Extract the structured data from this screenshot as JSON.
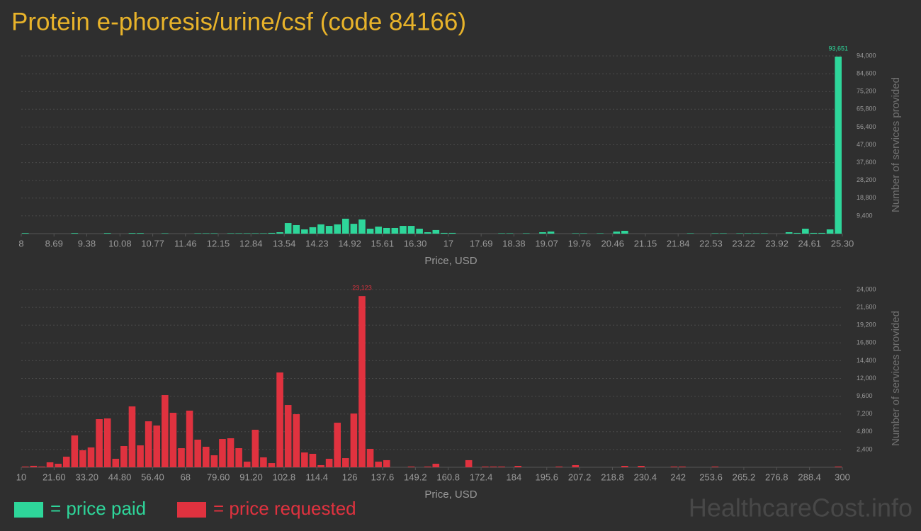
{
  "title": "Protein e-phoresis/urine/csf (code 84166)",
  "watermark": "HealthcareCost.info",
  "chart_data": [
    {
      "type": "histogram",
      "xlabel": "Price, USD",
      "ylabel": "Number of services provided",
      "grid": true,
      "xlim": [
        8,
        25.3
      ],
      "ylim": [
        0,
        94000
      ],
      "xticks": [
        8,
        8.69,
        9.38,
        10.08,
        10.77,
        11.46,
        12.15,
        12.84,
        13.54,
        14.23,
        14.92,
        15.61,
        {
          "value": 16.3,
          "label": "16.30"
        },
        17,
        17.69,
        18.38,
        19.07,
        19.76,
        20.46,
        21.15,
        21.84,
        22.53,
        23.22,
        23.92,
        24.61,
        {
          "value": 25.3,
          "label": "25.30"
        }
      ],
      "yticks": [
        {
          "value": 9400,
          "label": "9,400"
        },
        {
          "value": 18800,
          "label": "18,800"
        },
        {
          "value": 28200,
          "label": "28,200"
        },
        {
          "value": 37600,
          "label": "37,600"
        },
        {
          "value": 47000,
          "label": "47,000"
        },
        {
          "value": 56400,
          "label": "56,400"
        },
        {
          "value": 65800,
          "label": "65,800"
        },
        {
          "value": 75200,
          "label": "75,200"
        },
        {
          "value": 84600,
          "label": "84,600"
        },
        {
          "value": 94000,
          "label": "94,000"
        }
      ],
      "bins": [
        8,
        8.173,
        8.346,
        8.519,
        8.692,
        8.865,
        9.038,
        9.211,
        9.384,
        9.557,
        9.73,
        9.903,
        10.076,
        10.249,
        10.422,
        10.595,
        10.768,
        10.941,
        11.114,
        11.287,
        11.46,
        11.633,
        11.806,
        11.979,
        12.152,
        12.325,
        12.498,
        12.671,
        12.844,
        13.017,
        13.19,
        13.363,
        13.536,
        13.709,
        13.882,
        14.055,
        14.228,
        14.401,
        14.574,
        14.747,
        14.92,
        15.093,
        15.266,
        15.439,
        15.612,
        15.785,
        15.958,
        16.131,
        16.304,
        16.477,
        16.65,
        16.823,
        16.996,
        17.169,
        17.342,
        17.515,
        17.688,
        17.861,
        18.034,
        18.207,
        18.38,
        18.553,
        18.726,
        18.899,
        19.072,
        19.245,
        19.418,
        19.591,
        19.764,
        19.937,
        20.11,
        20.283,
        20.456,
        20.629,
        20.802,
        20.975,
        21.148,
        21.321,
        21.494,
        21.667,
        21.84,
        22.013,
        22.186,
        22.359,
        22.532,
        22.705,
        22.878,
        23.051,
        23.224,
        23.397,
        23.57,
        23.743,
        23.916,
        24.089,
        24.262,
        24.435,
        24.608,
        24.781,
        24.954,
        25.127,
        25.3
      ],
      "series": [
        {
          "name": "= price paid",
          "color": "#2ed69a",
          "values": [
            300,
            0,
            0,
            0,
            0,
            0,
            300,
            0,
            0,
            0,
            300,
            0,
            0,
            300,
            300,
            0,
            0,
            200,
            0,
            0,
            0,
            200,
            200,
            200,
            0,
            200,
            200,
            200,
            200,
            200,
            400,
            750,
            5600,
            4500,
            2250,
            3400,
            4900,
            4100,
            4900,
            7900,
            5200,
            7500,
            2600,
            3700,
            3000,
            3000,
            4100,
            4100,
            2600,
            750,
            1900,
            400,
            400,
            0,
            0,
            0,
            0,
            0,
            200,
            200,
            0,
            200,
            0,
            750,
            1100,
            0,
            0,
            200,
            200,
            0,
            200,
            0,
            1100,
            1500,
            0,
            0,
            0,
            0,
            0,
            0,
            0,
            200,
            0,
            0,
            200,
            200,
            0,
            200,
            200,
            200,
            200,
            0,
            0,
            750,
            400,
            2600,
            400,
            400,
            2250,
            93651
          ],
          "value_labels": [
            null,
            null,
            null,
            null,
            null,
            null,
            null,
            null,
            null,
            null,
            null,
            null,
            null,
            null,
            null,
            null,
            null,
            null,
            null,
            null,
            null,
            null,
            null,
            null,
            null,
            null,
            null,
            null,
            null,
            null,
            null,
            null,
            null,
            null,
            null,
            null,
            null,
            null,
            null,
            null,
            null,
            null,
            null,
            null,
            null,
            null,
            null,
            null,
            null,
            null,
            null,
            null,
            null,
            null,
            null,
            null,
            null,
            null,
            null,
            null,
            null,
            null,
            null,
            null,
            null,
            null,
            null,
            null,
            null,
            null,
            null,
            null,
            null,
            null,
            null,
            null,
            null,
            null,
            null,
            null,
            null,
            null,
            null,
            null,
            null,
            null,
            null,
            null,
            null,
            null,
            null,
            null,
            null,
            null,
            null,
            null,
            null,
            null,
            null,
            "93,651"
          ]
        }
      ]
    },
    {
      "type": "histogram",
      "xlabel": "Price, USD",
      "ylabel": "Number of services provided",
      "grid": true,
      "xlim": [
        10,
        300
      ],
      "ylim": [
        0,
        24000
      ],
      "xticks": [
        10,
        {
          "value": 21.6,
          "label": "21.60"
        },
        {
          "value": 33.2,
          "label": "33.20"
        },
        {
          "value": 44.8,
          "label": "44.80"
        },
        {
          "value": 56.4,
          "label": "56.40"
        },
        68,
        {
          "value": 79.6,
          "label": "79.60"
        },
        {
          "value": 91.2,
          "label": "91.20"
        },
        102.8,
        114.4,
        126,
        137.6,
        149.2,
        160.8,
        172.4,
        184,
        195.6,
        207.2,
        218.8,
        230.4,
        242,
        253.6,
        265.2,
        276.8,
        288.4,
        300
      ],
      "yticks": [
        {
          "value": 2400,
          "label": "2,400"
        },
        {
          "value": 4800,
          "label": "4,800"
        },
        {
          "value": 7200,
          "label": "7,200"
        },
        {
          "value": 9600,
          "label": "9,600"
        },
        {
          "value": 12000,
          "label": "12,000"
        },
        {
          "value": 14400,
          "label": "14,400"
        },
        {
          "value": 16800,
          "label": "16,800"
        },
        {
          "value": 19200,
          "label": "19,200"
        },
        {
          "value": 21600,
          "label": "21,600"
        },
        {
          "value": 24000,
          "label": "24,000"
        }
      ],
      "bins": [
        10,
        12.9,
        15.8,
        18.7,
        21.6,
        24.5,
        27.4,
        30.3,
        33.2,
        36.1,
        39,
        41.9,
        44.8,
        47.7,
        50.6,
        53.5,
        56.4,
        59.3,
        62.2,
        65.1,
        68,
        70.9,
        73.8,
        76.7,
        79.6,
        82.5,
        85.4,
        88.3,
        91.2,
        94.1,
        97,
        99.9,
        102.8,
        105.7,
        108.6,
        111.5,
        114.4,
        117.3,
        120.2,
        123.1,
        126,
        128.9,
        131.8,
        134.7,
        137.6,
        140.5,
        143.4,
        146.3,
        149.2,
        152.1,
        155,
        157.9,
        160.8,
        163.7,
        166.6,
        169.5,
        172.4,
        175.3,
        178.2,
        181.1,
        184,
        186.9,
        189.8,
        192.7,
        195.6,
        198.5,
        201.4,
        204.3,
        207.2,
        210.1,
        213,
        215.9,
        218.8,
        221.7,
        224.6,
        227.5,
        230.4,
        233.3,
        236.2,
        239.1,
        242,
        244.9,
        247.8,
        250.7,
        253.6,
        256.5,
        259.4,
        262.3,
        265.2,
        268.1,
        271,
        273.9,
        276.8,
        279.7,
        282.6,
        285.5,
        288.4,
        291.3,
        294.2,
        297.1,
        300
      ],
      "series": [
        {
          "name": "= price requested",
          "color": "#e0323f",
          "values": [
            100,
            200,
            100,
            670,
            480,
            1430,
            4300,
            2300,
            2680,
            6500,
            6600,
            1150,
            2870,
            8220,
            2960,
            6210,
            5640,
            9750,
            7360,
            2580,
            7650,
            3730,
            2770,
            1620,
            3820,
            3920,
            2580,
            760,
            5070,
            1340,
            570,
            12800,
            8410,
            7170,
            2000,
            1820,
            290,
            1150,
            6020,
            1240,
            7260,
            23123,
            2490,
            760,
            960,
            0,
            0,
            100,
            0,
            100,
            480,
            0,
            0,
            0,
            960,
            0,
            100,
            100,
            100,
            0,
            190,
            0,
            0,
            0,
            0,
            100,
            0,
            290,
            0,
            0,
            0,
            0,
            0,
            190,
            0,
            190,
            0,
            0,
            0,
            100,
            100,
            0,
            0,
            0,
            100,
            0,
            0,
            0,
            0,
            0,
            0,
            0,
            0,
            0,
            0,
            0,
            0,
            0,
            0,
            100
          ],
          "value_labels": [
            null,
            null,
            null,
            null,
            null,
            null,
            null,
            null,
            null,
            null,
            null,
            null,
            null,
            null,
            null,
            null,
            null,
            null,
            null,
            null,
            null,
            null,
            null,
            null,
            null,
            null,
            null,
            null,
            null,
            null,
            null,
            null,
            null,
            null,
            null,
            null,
            null,
            null,
            null,
            null,
            null,
            "23,123",
            null,
            null,
            null,
            null,
            null,
            null,
            null,
            null,
            null,
            null,
            null,
            null,
            null,
            null,
            null,
            null,
            null,
            null,
            null,
            null,
            null,
            null,
            null,
            null,
            null,
            null,
            null,
            null,
            null,
            null,
            null,
            null,
            null,
            null,
            null,
            null,
            null,
            null,
            null,
            null,
            null,
            null,
            null,
            null,
            null,
            null,
            null,
            null,
            null,
            null,
            null,
            null,
            null,
            null,
            null,
            null,
            null,
            null
          ]
        }
      ]
    }
  ]
}
